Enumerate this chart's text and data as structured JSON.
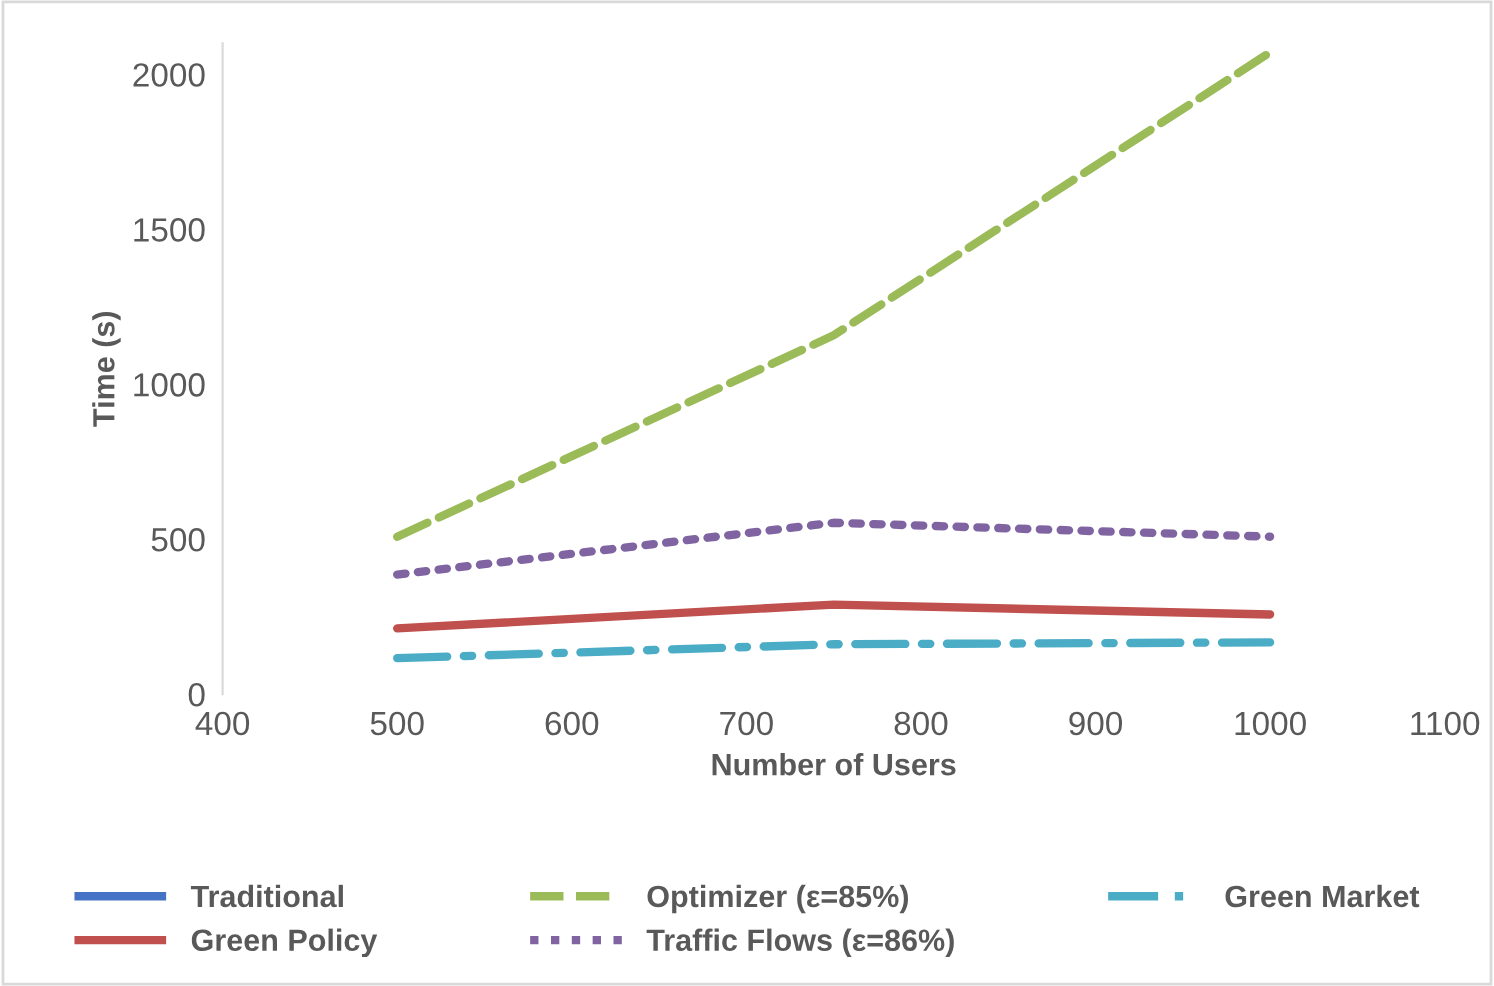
{
  "chart_data": {
    "type": "line",
    "xlabel": "Number of Users",
    "ylabel": "Time (s)",
    "x": [
      500,
      750,
      1000
    ],
    "xlim": [
      400,
      1100
    ],
    "xticks": [
      400,
      500,
      600,
      700,
      800,
      900,
      1000,
      1100
    ],
    "ylim": [
      0,
      2100
    ],
    "yticks": [
      0,
      500,
      1000,
      1500,
      2000
    ],
    "grid": false,
    "legend": "bottom",
    "marker": "none",
    "series": [
      {
        "name": "Traditional",
        "color": "#4472c4",
        "line_style": "solid",
        "values": [
          null,
          null,
          null
        ]
      },
      {
        "name": "Green Policy",
        "color": "#c0504d",
        "line_style": "solid",
        "values": [
          212,
          289,
          257
        ]
      },
      {
        "name": "Optimizer (ε=85%)",
        "color": "#9bbb59",
        "line_style": "dashed",
        "values": [
          508,
          1158,
          2071
        ]
      },
      {
        "name": "Traffic Flows (ε=86%)",
        "color": "#8064a2",
        "line_style": "dotted",
        "values": [
          386,
          553,
          508
        ]
      },
      {
        "name": "Green Market",
        "color": "#4bacc6",
        "line_style": "dashdot",
        "values": [
          116,
          161,
          167
        ]
      }
    ]
  }
}
